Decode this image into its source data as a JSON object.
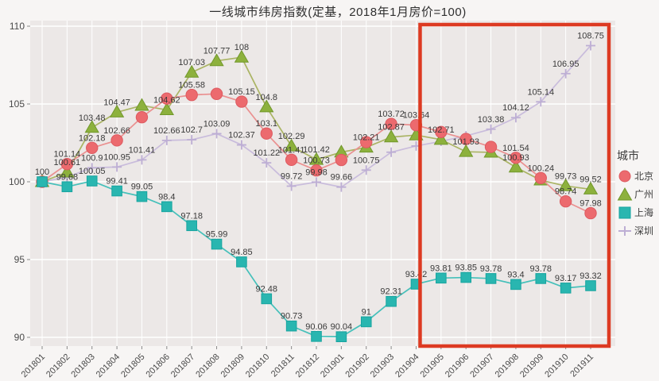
{
  "title": "一线城市纬房指数(定基，2018年1月房价=100)",
  "chart_data": {
    "type": "line",
    "x": [
      "201801",
      "201802",
      "201803",
      "201804",
      "201805",
      "201806",
      "201807",
      "201808",
      "201809",
      "201810",
      "201811",
      "201812",
      "201901",
      "201902",
      "201903",
      "201904",
      "201905",
      "201906",
      "201907",
      "201908",
      "201909",
      "201910",
      "201911"
    ],
    "yticks": [
      90,
      95,
      100,
      105,
      110
    ],
    "ylim": [
      89.5,
      110.4
    ],
    "grid": true,
    "legend_title": "城市",
    "legend_position": "right",
    "series": [
      {
        "name": "北京",
        "marker": "circle",
        "color": "#ec6a6e",
        "edge_color": "#dd5a60",
        "line_color": "#ea9090",
        "values": [
          100,
          101.14,
          102.18,
          102.66,
          104.15,
          105.35,
          105.58,
          105.65,
          105.15,
          103.1,
          101.41,
          100.73,
          101.4,
          102.55,
          103.72,
          103.64,
          103.2,
          102.75,
          102.24,
          101.54,
          100.24,
          98.74,
          97.98
        ],
        "labels": [
          "100",
          "101.14",
          "102.18",
          "102.66",
          null,
          null,
          "105.58",
          null,
          "105.15",
          "103.1",
          "101.41",
          "100.73",
          null,
          null,
          "103.72",
          "103.64",
          null,
          null,
          null,
          "101.54",
          "100.24",
          "98.74",
          "97.98"
        ]
      },
      {
        "name": "广州",
        "marker": "triangle",
        "color": "#8db13d",
        "edge_color": "#71982b",
        "line_color": "#aab464",
        "values": [
          100,
          100.61,
          103.48,
          104.47,
          104.9,
          104.62,
          107.03,
          107.77,
          108,
          104.8,
          102.29,
          101.42,
          101.9,
          102.21,
          102.87,
          103.0,
          102.71,
          101.93,
          101.89,
          100.93,
          100.1,
          99.73,
          99.52
        ],
        "labels": [
          null,
          "100.61",
          "103.48",
          "104.47",
          null,
          "104.62",
          "107.03",
          "107.77",
          "108",
          "104.8",
          "102.29",
          "101.42",
          null,
          "102.21",
          "102.87",
          null,
          "102.71",
          "101.93",
          null,
          "100.93",
          null,
          "99.73",
          "99.52"
        ]
      },
      {
        "name": "上海",
        "marker": "square",
        "color": "#29b6b0",
        "edge_color": "#17a49f",
        "line_color": "#45c0ba",
        "values": [
          100,
          99.68,
          100.05,
          99.41,
          99.05,
          98.4,
          97.18,
          95.99,
          94.85,
          92.48,
          90.73,
          90.06,
          90.04,
          91,
          92.31,
          93.42,
          93.81,
          93.85,
          93.78,
          93.4,
          93.78,
          93.17,
          93.32
        ],
        "labels": [
          null,
          "99.68",
          "100.05",
          "99.41",
          "99.05",
          "98.4",
          "97.18",
          "95.99",
          "94.85",
          "92.48",
          "90.73",
          "90.06",
          "90.04",
          "91",
          "92.31",
          "93.42",
          "93.81",
          "93.85",
          "93.78",
          "93.4",
          "93.78",
          "93.17",
          "93.32"
        ]
      },
      {
        "name": "深圳",
        "marker": "plus",
        "color": "#bdaed4",
        "edge_color": "#bdaed4",
        "line_color": "#c9bcdc",
        "values": [
          100,
          100.3,
          100.9,
          100.95,
          101.41,
          102.66,
          102.7,
          103.09,
          102.37,
          101.22,
          99.72,
          99.98,
          99.66,
          100.75,
          101.9,
          102.3,
          102.6,
          102.95,
          103.38,
          104.12,
          105.14,
          106.95,
          108.75
        ],
        "labels": [
          null,
          null,
          "100.9",
          "100.95",
          "101.41",
          "102.66",
          "102.7",
          "103.09",
          "102.37",
          "101.22",
          "99.72",
          "99.98",
          "99.66",
          "100.75",
          null,
          null,
          null,
          null,
          "103.38",
          "104.12",
          "105.14",
          "106.95",
          "108.75"
        ]
      }
    ],
    "highlight_box": {
      "from": "201904",
      "to": "201911",
      "color": "#dd3a22"
    }
  }
}
